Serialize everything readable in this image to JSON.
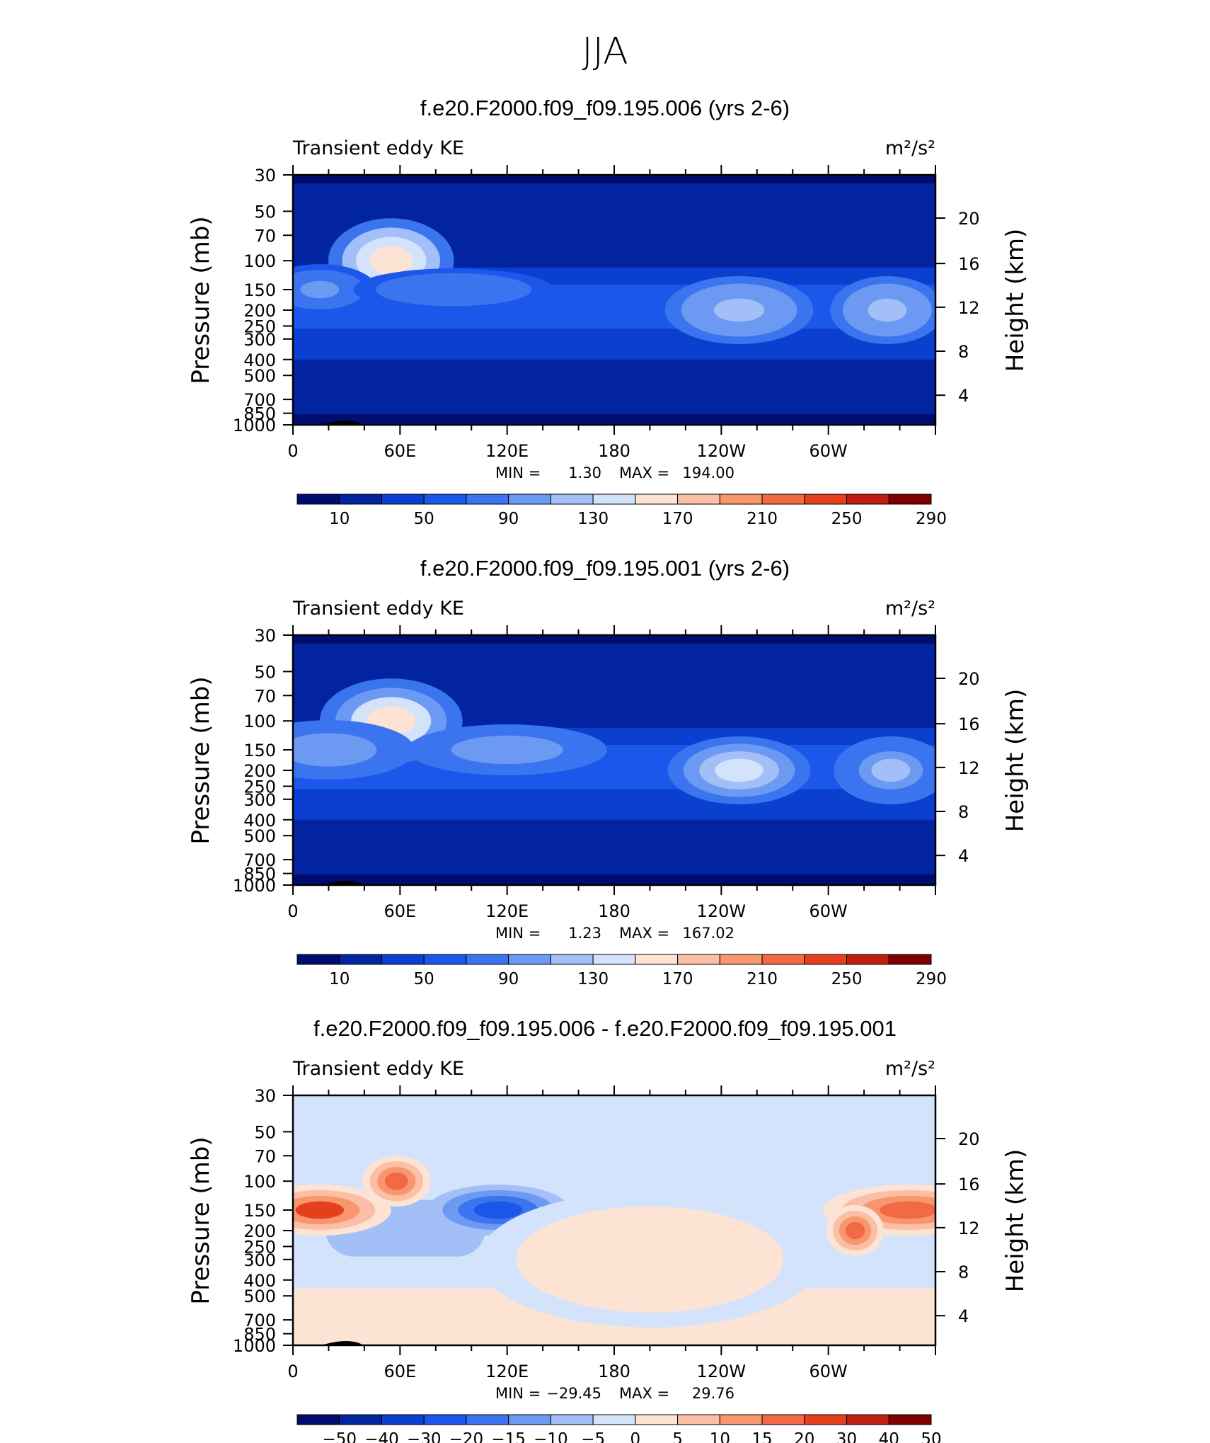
{
  "page_title": "JJA",
  "units": "m²/s²",
  "colors": {
    "abs_palette": [
      "#010d6e",
      "#0324a0",
      "#0a3fd0",
      "#1a57ea",
      "#3a74ee",
      "#6c99f2",
      "#a3bff7",
      "#d4e3fc",
      "#fde3d4",
      "#fbbfa5",
      "#f7966f",
      "#f26a43",
      "#e5401e",
      "#c01f0f",
      "#7f0000"
    ],
    "diff_palette": [
      "#010d6e",
      "#0324a0",
      "#0a3fd0",
      "#1a57ea",
      "#3a74ee",
      "#6c99f2",
      "#a3bff7",
      "#d4e3fc",
      "#fde3d4",
      "#fbbfa5",
      "#f7966f",
      "#f26a43",
      "#e5401e",
      "#c01f0f",
      "#7f0000"
    ]
  },
  "chart_data": [
    {
      "type": "heatmap",
      "title": "f.e20.F2000.f09_f09.195.006 (yrs 2-6)",
      "left_label": "Transient eddy KE",
      "right_label": "m²/s²",
      "ylabel": "Pressure (mb)",
      "ylabel_right": "Height (km)",
      "x_ticks": [
        "0",
        "60E",
        "120E",
        "180",
        "120W",
        "60W"
      ],
      "y_ticks": [
        "30",
        "50",
        "70",
        "100",
        "150",
        "200",
        "250",
        "300",
        "400",
        "500",
        "700",
        "850",
        "1000"
      ],
      "y2_ticks": [
        "20",
        "16",
        "12",
        "8",
        "4"
      ],
      "stats": {
        "min_label": "MIN =",
        "min": "1.30",
        "max_label": "MAX =",
        "max": "194.00"
      },
      "colorbar_labels": [
        "10",
        "50",
        "90",
        "130",
        "170",
        "210",
        "250",
        "290"
      ],
      "palette": "abs_palette",
      "level_indices": [
        0,
        1,
        2,
        3,
        4,
        5,
        6,
        7,
        8
      ],
      "features": [
        {
          "lon": 2,
          "p": 5,
          "w": 40,
          "h": 1.1,
          "v": 0.5
        },
        {
          "lon": 55,
          "p": 100,
          "w": 22,
          "h": 0.5,
          "v": 1.0
        },
        {
          "lon": 15,
          "p": 150,
          "w": 20,
          "h": 0.3,
          "v": 0.35
        },
        {
          "lon": 90,
          "p": 150,
          "w": 35,
          "h": 0.25,
          "v": 0.25
        },
        {
          "lon": 250,
          "p": 200,
          "w": 26,
          "h": 0.4,
          "v": 0.65
        },
        {
          "lon": 333,
          "p": 200,
          "w": 20,
          "h": 0.4,
          "v": 0.6
        }
      ]
    },
    {
      "type": "heatmap",
      "title": "f.e20.F2000.f09_f09.195.001 (yrs 2-6)",
      "left_label": "Transient eddy KE",
      "right_label": "m²/s²",
      "ylabel": "Pressure (mb)",
      "ylabel_right": "Height (km)",
      "x_ticks": [
        "0",
        "60E",
        "120E",
        "180",
        "120W",
        "60W"
      ],
      "y_ticks": [
        "30",
        "50",
        "70",
        "100",
        "150",
        "200",
        "250",
        "300",
        "400",
        "500",
        "700",
        "850",
        "1000"
      ],
      "y2_ticks": [
        "20",
        "16",
        "12",
        "8",
        "4"
      ],
      "stats": {
        "min_label": "MIN =",
        "min": "1.23",
        "max_label": "MAX =",
        "max": "167.02"
      },
      "colorbar_labels": [
        "10",
        "50",
        "90",
        "130",
        "170",
        "210",
        "250",
        "290"
      ],
      "palette": "abs_palette",
      "level_indices": [
        0,
        1,
        2,
        3,
        4,
        5,
        6,
        7,
        8
      ],
      "features": [
        {
          "lon": 55,
          "p": 100,
          "w": 25,
          "h": 0.5,
          "v": 0.95
        },
        {
          "lon": 20,
          "p": 150,
          "w": 30,
          "h": 0.35,
          "v": 0.4
        },
        {
          "lon": 120,
          "p": 150,
          "w": 35,
          "h": 0.3,
          "v": 0.45
        },
        {
          "lon": 250,
          "p": 200,
          "w": 25,
          "h": 0.4,
          "v": 0.7
        },
        {
          "lon": 335,
          "p": 200,
          "w": 20,
          "h": 0.4,
          "v": 0.55
        }
      ]
    },
    {
      "type": "heatmap",
      "title": "f.e20.F2000.f09_f09.195.006 - f.e20.F2000.f09_f09.195.001",
      "left_label": "Transient eddy KE",
      "right_label": "m²/s²",
      "ylabel": "Pressure (mb)",
      "ylabel_right": "Height (km)",
      "x_ticks": [
        "0",
        "60E",
        "120E",
        "180",
        "120W",
        "60W"
      ],
      "y_ticks": [
        "30",
        "50",
        "70",
        "100",
        "150",
        "200",
        "250",
        "300",
        "400",
        "500",
        "700",
        "850",
        "1000"
      ],
      "y2_ticks": [
        "20",
        "16",
        "12",
        "8",
        "4"
      ],
      "stats": {
        "min_label": "MIN =",
        "min": "−29.45",
        "max_label": "MAX =",
        "max": "29.76"
      },
      "colorbar_labels": [
        "−50",
        "−40",
        "−30",
        "−20",
        "−15",
        "−10",
        "−5",
        "0",
        "5",
        "10",
        "15",
        "20",
        "30",
        "40",
        "50"
      ],
      "palette": "diff_palette",
      "level_indices": [
        3,
        4,
        5,
        6,
        7,
        8,
        9,
        10,
        11,
        12
      ],
      "features": [
        {
          "lon": 15,
          "p": 150,
          "w": 25,
          "h": 0.3,
          "v": 0.9
        },
        {
          "lon": 58,
          "p": 100,
          "w": 12,
          "h": 0.3,
          "v": 0.85
        },
        {
          "lon": 115,
          "p": 150,
          "w": 25,
          "h": 0.3,
          "v": -0.9
        },
        {
          "lon": 243,
          "p": 200,
          "w": 10,
          "h": 0.3,
          "v": -0.6
        },
        {
          "lon": 345,
          "p": 150,
          "w": 30,
          "h": 0.3,
          "v": 0.85
        },
        {
          "lon": 315,
          "p": 200,
          "w": 10,
          "h": 0.3,
          "v": 0.7
        },
        {
          "lon": 200,
          "p": 300,
          "w": 60,
          "h": 0.8,
          "v": 0.2
        }
      ]
    }
  ]
}
